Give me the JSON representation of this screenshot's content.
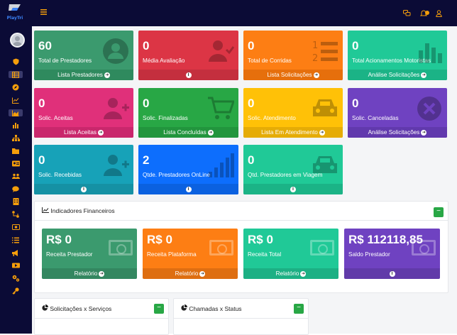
{
  "brand": {
    "logo_text": "PlayTri"
  },
  "header": {
    "menu_icon": "hamburger-icon",
    "icons": [
      "chat-icon",
      "bell-icon",
      "user-icon"
    ],
    "bell_badge": "0"
  },
  "sidebar": {
    "icons": [
      "shield-icon",
      "table-icon",
      "compass-icon",
      "line-chart-icon",
      "area-chart-icon",
      "bar-chart-icon",
      "sitemap-icon",
      "folder-icon",
      "id-card-icon",
      "users-icon",
      "comment-icon",
      "building-icon",
      "route-icon",
      "money-icon",
      "list-icon",
      "megaphone-icon",
      "video-icon",
      "cogs-icon",
      "key-icon"
    ]
  },
  "stats": [
    {
      "value": "60",
      "label": "Total de Prestadores",
      "footer": "Lista Prestadores",
      "footer_icon": "arrow",
      "color": "#3b9a6e",
      "footer_color": "#2f8a5e",
      "icon": "user-circle-icon"
    },
    {
      "value": "0",
      "label": "Média Avaliação",
      "footer": "",
      "footer_icon": "info",
      "color": "#dc3545",
      "footer_color": "#c42f3e",
      "icon": "user-check-icon"
    },
    {
      "value": "0",
      "label": "Total de Corridas",
      "footer": "Lista Solicitações",
      "footer_icon": "arrow",
      "color": "#fd7e14",
      "footer_color": "#e66f0c",
      "icon": "list-ol-icon"
    },
    {
      "value": "0",
      "label": "Total Acionamentos Motoristas",
      "footer": "Análise Solicitações",
      "footer_icon": "arrow",
      "color": "#20c997",
      "footer_color": "#1bb386",
      "icon": "bar-chart-icon"
    },
    {
      "value": "0",
      "label": "Solic. Aceitas",
      "footer": "Lista Aceitas",
      "footer_icon": "arrow",
      "color": "#e0307a",
      "footer_color": "#c9276c",
      "icon": "user-plus-icon"
    },
    {
      "value": "0",
      "label": "Solic. Finalizadas",
      "footer": "Lista Concluídas",
      "footer_icon": "arrow",
      "color": "#28a745",
      "footer_color": "#22953d",
      "icon": "cart-icon"
    },
    {
      "value": "0",
      "label": "Solic. Atendimento",
      "footer": "Lista Em Atendimento",
      "footer_icon": "arrow",
      "color": "#ffc107",
      "footer_color": "#e5ac06",
      "icon": "car-icon"
    },
    {
      "value": "0",
      "label": "Solic. Canceladas",
      "footer": "Análise Solicitações",
      "footer_icon": "arrow",
      "color": "#6f42c1",
      "footer_color": "#6139ad",
      "icon": "times-circle-icon"
    },
    {
      "value": "0",
      "label": "Solic. Recebidas",
      "footer": "",
      "footer_icon": "info",
      "color": "#17a2b8",
      "footer_color": "#1591a4",
      "icon": "user-plus-icon"
    },
    {
      "value": "2",
      "label": "Qtde. Prestadores OnLine",
      "footer": "",
      "footer_icon": "info",
      "color": "#0d6efd",
      "footer_color": "#0b61e0",
      "icon": "signal-icon"
    },
    {
      "value": "0",
      "label": "Qtd. Prestadores em Viagem",
      "footer": "",
      "footer_icon": "info",
      "color": "#20c997",
      "footer_color": "#1bb386",
      "icon": "car-icon"
    }
  ],
  "financial": {
    "title": "Indicadores Financeiros",
    "title_icon": "line-chart-icon",
    "toggle_label": "−",
    "cards": [
      {
        "value": "R$ 0",
        "label": "Receita Prestador",
        "footer": "Relatório",
        "footer_icon": "arrow",
        "color": "#3b9a6e"
      },
      {
        "value": "R$ 0",
        "label": "Receita Plataforma",
        "footer": "Relatório",
        "footer_icon": "arrow",
        "color": "#fd7e14"
      },
      {
        "value": "R$ 0",
        "label": "Receita Total",
        "footer": "Relatório",
        "footer_icon": "arrow",
        "color": "#20c997"
      },
      {
        "value": "R$ 112118,85",
        "label": "Saldo Prestador",
        "footer": "",
        "footer_icon": "info",
        "color": "#6f42c1"
      }
    ]
  },
  "panels": [
    {
      "title": "Solicitações x Serviços",
      "icon": "pie-chart-icon",
      "toggle_label": "−"
    },
    {
      "title": "Chamadas x Status",
      "icon": "pie-chart-icon",
      "toggle_label": "−"
    }
  ]
}
